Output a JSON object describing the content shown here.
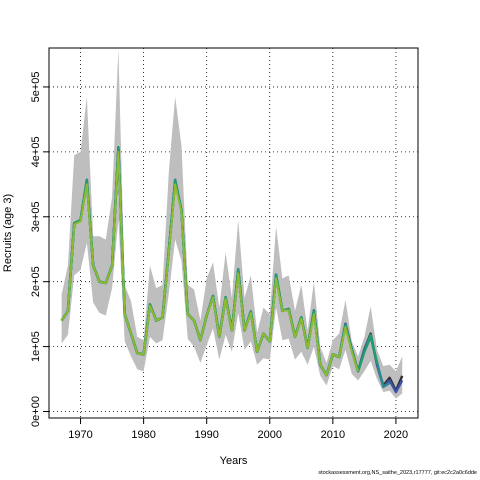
{
  "chart_data": {
    "type": "line",
    "xlabel": "Years",
    "ylabel": "Recruits (age 3)",
    "xlim": [
      1965,
      2023.5
    ],
    "ylim": [
      -10000,
      560000
    ],
    "x_ticks": [
      1970,
      1980,
      1990,
      2000,
      2010,
      2020
    ],
    "x_tick_labels": [
      "1970",
      "1980",
      "1990",
      "2000",
      "2010",
      "2020"
    ],
    "y_ticks": [
      0,
      100000,
      200000,
      300000,
      400000,
      500000
    ],
    "y_tick_labels": [
      "0e+00",
      "1e+05",
      "2e+05",
      "3e+05",
      "4e+05",
      "5e+05"
    ],
    "grid": true,
    "band_color": "#bebebe",
    "x": [
      1967,
      1968,
      1969,
      1970,
      1971,
      1972,
      1973,
      1974,
      1975,
      1976,
      1977,
      1978,
      1979,
      1980,
      1981,
      1982,
      1983,
      1984,
      1985,
      1986,
      1987,
      1988,
      1989,
      1990,
      1991,
      1992,
      1993,
      1994,
      1995,
      1996,
      1997,
      1998,
      1999,
      2000,
      2001,
      2002,
      2003,
      2004,
      2005,
      2006,
      2007,
      2008,
      2009,
      2010,
      2011,
      2012,
      2013,
      2014,
      2015,
      2016,
      2017,
      2018,
      2019,
      2020,
      2021
    ],
    "band_lower": [
      105000,
      118000,
      210000,
      218000,
      260000,
      168000,
      152000,
      148000,
      190000,
      295000,
      108000,
      85000,
      65000,
      62000,
      115000,
      105000,
      110000,
      182000,
      265000,
      232000,
      112000,
      100000,
      75000,
      102000,
      128000,
      80000,
      118000,
      92000,
      152000,
      95000,
      108000,
      72000,
      82000,
      80000,
      160000,
      110000,
      112000,
      80000,
      92000,
      72000,
      100000,
      55000,
      40000,
      70000,
      65000,
      95000,
      58000,
      48000,
      62000,
      78000,
      50000,
      30000,
      32000,
      20000,
      28000
    ],
    "band_upper": [
      180000,
      225000,
      395000,
      400000,
      485000,
      270000,
      270000,
      265000,
      330000,
      558000,
      195000,
      170000,
      115000,
      110000,
      225000,
      190000,
      195000,
      370000,
      485000,
      410000,
      195000,
      188000,
      140000,
      205000,
      230000,
      160000,
      245000,
      175000,
      295000,
      175000,
      210000,
      122000,
      160000,
      150000,
      285000,
      205000,
      210000,
      155000,
      195000,
      125000,
      200000,
      100000,
      75000,
      110000,
      120000,
      172000,
      108000,
      85000,
      115000,
      162000,
      95000,
      70000,
      72000,
      62000,
      85000
    ],
    "series": [
      {
        "color": "#2e2e2e",
        "values": [
          140000,
          155000,
          290000,
          295000,
          355000,
          225000,
          200000,
          198000,
          225000,
          405000,
          150000,
          120000,
          90000,
          88000,
          165000,
          140000,
          145000,
          248000,
          355000,
          310000,
          150000,
          140000,
          110000,
          148000,
          178000,
          115000,
          176000,
          125000,
          218000,
          125000,
          154000,
          92000,
          120000,
          108000,
          210000,
          155000,
          158000,
          115000,
          145000,
          98000,
          155000,
          72000,
          56000,
          88000,
          84000,
          135000,
          96000,
          62000,
          96000,
          120000,
          72000,
          40000,
          52000,
          32000,
          55000
        ]
      },
      {
        "color": "#3b4fa8",
        "values": [
          140000,
          155000,
          290000,
          295000,
          357000,
          225000,
          200000,
          198000,
          225000,
          407000,
          150000,
          120000,
          90000,
          88000,
          165000,
          140000,
          145000,
          248000,
          357000,
          310000,
          150000,
          140000,
          110000,
          148000,
          178000,
          115000,
          176000,
          125000,
          219000,
          125000,
          154000,
          92000,
          120000,
          108000,
          211000,
          155000,
          158000,
          115000,
          145000,
          98000,
          156000,
          72000,
          56000,
          88000,
          84000,
          135000,
          96000,
          62000,
          96000,
          118000,
          72000,
          38000,
          48000,
          30000,
          48000
        ]
      },
      {
        "color": "#2a8a8c",
        "values": [
          140000,
          155000,
          290000,
          295000,
          357000,
          225000,
          200000,
          198000,
          225000,
          407000,
          150000,
          120000,
          90000,
          88000,
          165000,
          140000,
          145000,
          248000,
          357000,
          310000,
          150000,
          140000,
          110000,
          148000,
          178000,
          115000,
          176000,
          125000,
          219000,
          125000,
          154000,
          92000,
          120000,
          108000,
          211000,
          155000,
          158000,
          115000,
          145000,
          98000,
          156000,
          72000,
          56000,
          88000,
          84000,
          134000,
          95000,
          62000,
          92000,
          115000,
          76000,
          38000,
          44000,
          null,
          null
        ]
      },
      {
        "color": "#1f9d6e",
        "values": [
          140000,
          155000,
          290000,
          295000,
          355000,
          225000,
          200000,
          198000,
          225000,
          405000,
          150000,
          120000,
          90000,
          88000,
          165000,
          140000,
          145000,
          248000,
          355000,
          310000,
          150000,
          140000,
          110000,
          148000,
          178000,
          115000,
          176000,
          125000,
          217000,
          125000,
          154000,
          92000,
          120000,
          108000,
          209000,
          155000,
          158000,
          115000,
          145000,
          98000,
          154000,
          72000,
          56000,
          88000,
          84000,
          132000,
          94000,
          62000,
          92000,
          118000,
          74000,
          null,
          null,
          null,
          null
        ]
      },
      {
        "color": "#8dbb2e",
        "values": [
          140000,
          155000,
          288000,
          293000,
          350000,
          225000,
          200000,
          198000,
          225000,
          400000,
          150000,
          120000,
          90000,
          88000,
          163000,
          140000,
          145000,
          245000,
          350000,
          308000,
          150000,
          140000,
          110000,
          148000,
          176000,
          115000,
          174000,
          125000,
          213000,
          125000,
          152000,
          92000,
          120000,
          108000,
          205000,
          155000,
          156000,
          115000,
          143000,
          98000,
          150000,
          72000,
          56000,
          88000,
          84000,
          130000,
          92000,
          62000,
          null,
          null,
          null,
          null,
          null,
          null,
          null
        ]
      }
    ]
  },
  "footer_note": "stockassessment.org,NS_saithe_2023,r17777, git:ec2c2a0c6dde"
}
